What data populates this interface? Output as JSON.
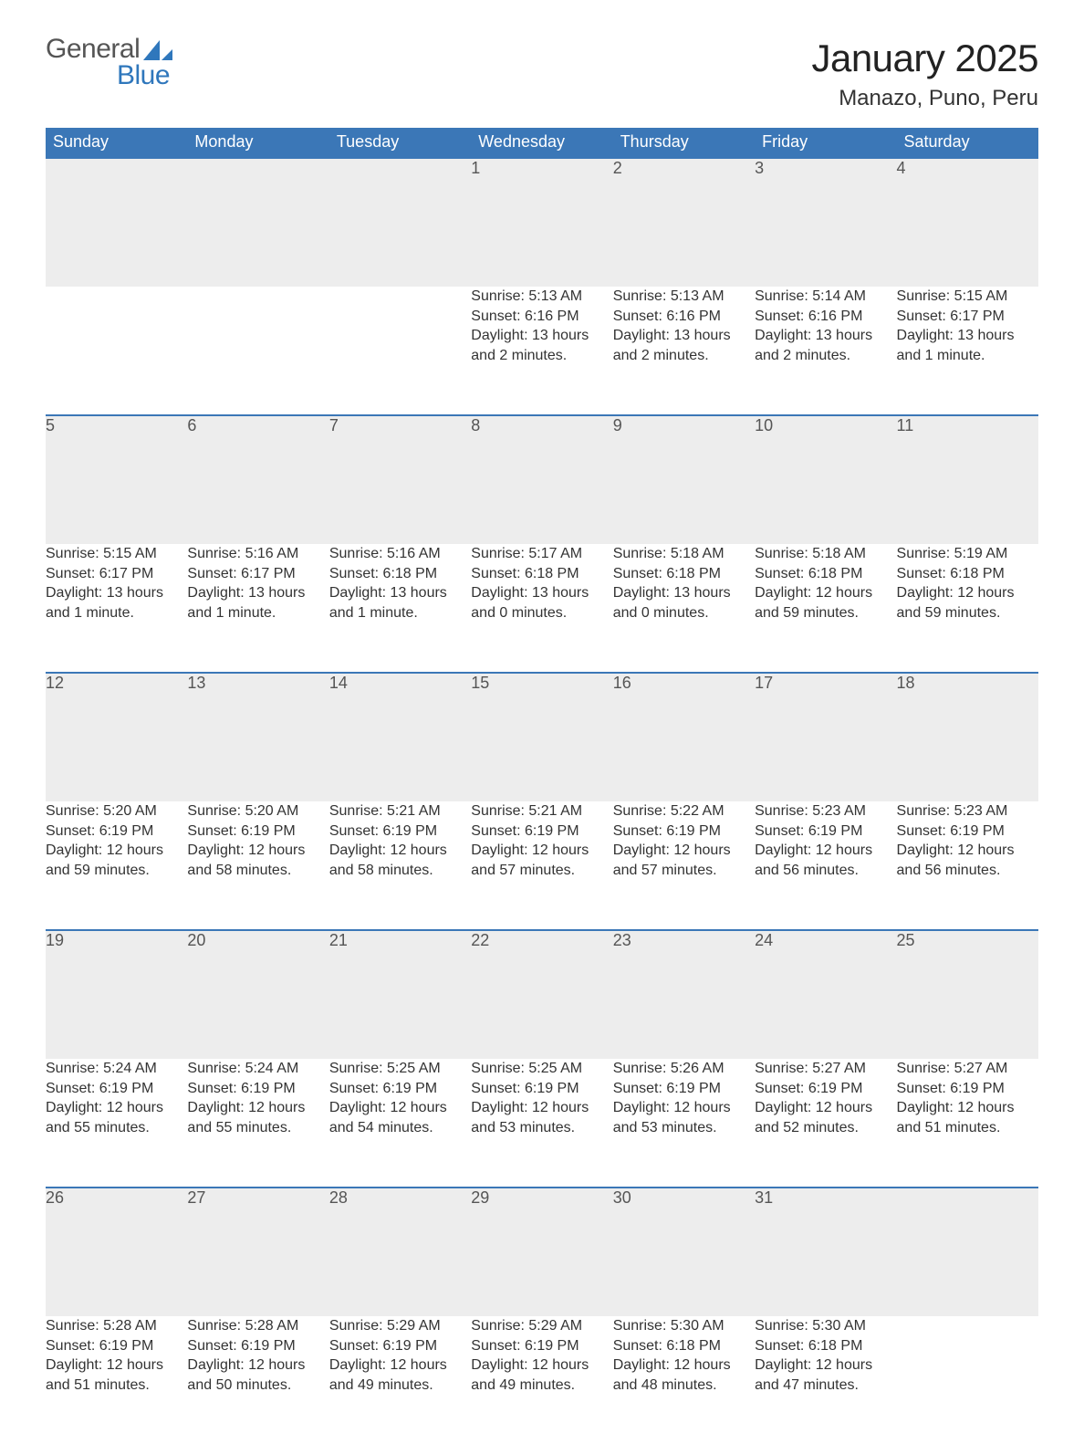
{
  "brand": {
    "word1": "General",
    "word2": "Blue",
    "accent": "#2f77bc"
  },
  "title": {
    "month": "January 2025",
    "location": "Manazo, Puno, Peru"
  },
  "colors": {
    "header_bg": "#3b77b7",
    "header_text": "#ffffff",
    "daynum_bg": "#ededed",
    "daynum_text": "#555555",
    "row_border": "#3b77b7",
    "body_text": "#333333",
    "page_bg": "#ffffff"
  },
  "calendar": {
    "columns": [
      "Sunday",
      "Monday",
      "Tuesday",
      "Wednesday",
      "Thursday",
      "Friday",
      "Saturday"
    ],
    "weeks": [
      [
        null,
        null,
        null,
        {
          "n": "1",
          "sr": "Sunrise: 5:13 AM",
          "ss": "Sunset: 6:16 PM",
          "dl": "Daylight: 13 hours and 2 minutes."
        },
        {
          "n": "2",
          "sr": "Sunrise: 5:13 AM",
          "ss": "Sunset: 6:16 PM",
          "dl": "Daylight: 13 hours and 2 minutes."
        },
        {
          "n": "3",
          "sr": "Sunrise: 5:14 AM",
          "ss": "Sunset: 6:16 PM",
          "dl": "Daylight: 13 hours and 2 minutes."
        },
        {
          "n": "4",
          "sr": "Sunrise: 5:15 AM",
          "ss": "Sunset: 6:17 PM",
          "dl": "Daylight: 13 hours and 1 minute."
        }
      ],
      [
        {
          "n": "5",
          "sr": "Sunrise: 5:15 AM",
          "ss": "Sunset: 6:17 PM",
          "dl": "Daylight: 13 hours and 1 minute."
        },
        {
          "n": "6",
          "sr": "Sunrise: 5:16 AM",
          "ss": "Sunset: 6:17 PM",
          "dl": "Daylight: 13 hours and 1 minute."
        },
        {
          "n": "7",
          "sr": "Sunrise: 5:16 AM",
          "ss": "Sunset: 6:18 PM",
          "dl": "Daylight: 13 hours and 1 minute."
        },
        {
          "n": "8",
          "sr": "Sunrise: 5:17 AM",
          "ss": "Sunset: 6:18 PM",
          "dl": "Daylight: 13 hours and 0 minutes."
        },
        {
          "n": "9",
          "sr": "Sunrise: 5:18 AM",
          "ss": "Sunset: 6:18 PM",
          "dl": "Daylight: 13 hours and 0 minutes."
        },
        {
          "n": "10",
          "sr": "Sunrise: 5:18 AM",
          "ss": "Sunset: 6:18 PM",
          "dl": "Daylight: 12 hours and 59 minutes."
        },
        {
          "n": "11",
          "sr": "Sunrise: 5:19 AM",
          "ss": "Sunset: 6:18 PM",
          "dl": "Daylight: 12 hours and 59 minutes."
        }
      ],
      [
        {
          "n": "12",
          "sr": "Sunrise: 5:20 AM",
          "ss": "Sunset: 6:19 PM",
          "dl": "Daylight: 12 hours and 59 minutes."
        },
        {
          "n": "13",
          "sr": "Sunrise: 5:20 AM",
          "ss": "Sunset: 6:19 PM",
          "dl": "Daylight: 12 hours and 58 minutes."
        },
        {
          "n": "14",
          "sr": "Sunrise: 5:21 AM",
          "ss": "Sunset: 6:19 PM",
          "dl": "Daylight: 12 hours and 58 minutes."
        },
        {
          "n": "15",
          "sr": "Sunrise: 5:21 AM",
          "ss": "Sunset: 6:19 PM",
          "dl": "Daylight: 12 hours and 57 minutes."
        },
        {
          "n": "16",
          "sr": "Sunrise: 5:22 AM",
          "ss": "Sunset: 6:19 PM",
          "dl": "Daylight: 12 hours and 57 minutes."
        },
        {
          "n": "17",
          "sr": "Sunrise: 5:23 AM",
          "ss": "Sunset: 6:19 PM",
          "dl": "Daylight: 12 hours and 56 minutes."
        },
        {
          "n": "18",
          "sr": "Sunrise: 5:23 AM",
          "ss": "Sunset: 6:19 PM",
          "dl": "Daylight: 12 hours and 56 minutes."
        }
      ],
      [
        {
          "n": "19",
          "sr": "Sunrise: 5:24 AM",
          "ss": "Sunset: 6:19 PM",
          "dl": "Daylight: 12 hours and 55 minutes."
        },
        {
          "n": "20",
          "sr": "Sunrise: 5:24 AM",
          "ss": "Sunset: 6:19 PM",
          "dl": "Daylight: 12 hours and 55 minutes."
        },
        {
          "n": "21",
          "sr": "Sunrise: 5:25 AM",
          "ss": "Sunset: 6:19 PM",
          "dl": "Daylight: 12 hours and 54 minutes."
        },
        {
          "n": "22",
          "sr": "Sunrise: 5:25 AM",
          "ss": "Sunset: 6:19 PM",
          "dl": "Daylight: 12 hours and 53 minutes."
        },
        {
          "n": "23",
          "sr": "Sunrise: 5:26 AM",
          "ss": "Sunset: 6:19 PM",
          "dl": "Daylight: 12 hours and 53 minutes."
        },
        {
          "n": "24",
          "sr": "Sunrise: 5:27 AM",
          "ss": "Sunset: 6:19 PM",
          "dl": "Daylight: 12 hours and 52 minutes."
        },
        {
          "n": "25",
          "sr": "Sunrise: 5:27 AM",
          "ss": "Sunset: 6:19 PM",
          "dl": "Daylight: 12 hours and 51 minutes."
        }
      ],
      [
        {
          "n": "26",
          "sr": "Sunrise: 5:28 AM",
          "ss": "Sunset: 6:19 PM",
          "dl": "Daylight: 12 hours and 51 minutes."
        },
        {
          "n": "27",
          "sr": "Sunrise: 5:28 AM",
          "ss": "Sunset: 6:19 PM",
          "dl": "Daylight: 12 hours and 50 minutes."
        },
        {
          "n": "28",
          "sr": "Sunrise: 5:29 AM",
          "ss": "Sunset: 6:19 PM",
          "dl": "Daylight: 12 hours and 49 minutes."
        },
        {
          "n": "29",
          "sr": "Sunrise: 5:29 AM",
          "ss": "Sunset: 6:19 PM",
          "dl": "Daylight: 12 hours and 49 minutes."
        },
        {
          "n": "30",
          "sr": "Sunrise: 5:30 AM",
          "ss": "Sunset: 6:18 PM",
          "dl": "Daylight: 12 hours and 48 minutes."
        },
        {
          "n": "31",
          "sr": "Sunrise: 5:30 AM",
          "ss": "Sunset: 6:18 PM",
          "dl": "Daylight: 12 hours and 47 minutes."
        },
        null
      ]
    ]
  }
}
